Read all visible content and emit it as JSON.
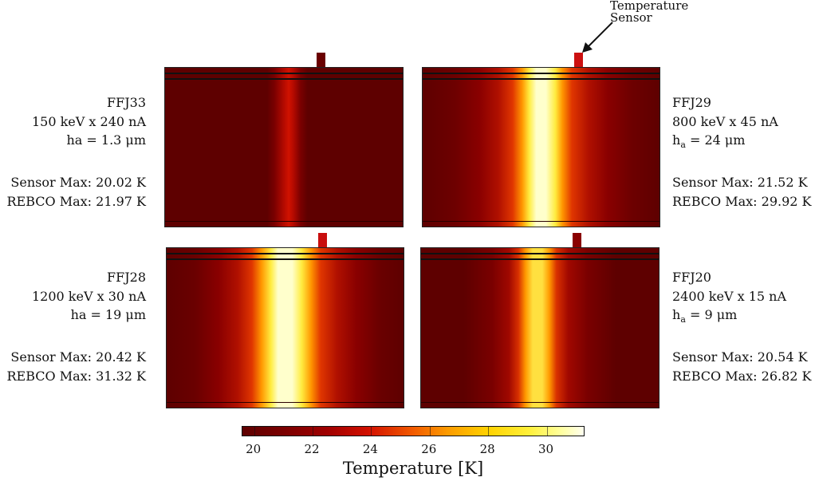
{
  "annotation": {
    "line1": "Temperature",
    "line2": "Sensor"
  },
  "panels": [
    {
      "id": "FFJ33",
      "name": "FFJ33",
      "beam": "150 keV x 240 nA",
      "ha_prefix": "ha",
      "ha_sub": "",
      "ha_value": " = 1.3 μm",
      "sensor_max": "Sensor Max: 20.02 K",
      "rebco_max": "REBCO Max: 21.97 K",
      "gradient": "linear-gradient(to right,#5e0000 0%,#5e0000 43%,#7a0000 46%,#b40a00 50%,#d01200 52%,#b40a00 54%,#7a0000 57%,#5e0000 60%,#5e0000 100%)",
      "sensor_color": "#6a0000"
    },
    {
      "id": "FFJ29",
      "name": "FFJ29",
      "beam": "800 keV x 45 nA",
      "ha_prefix": "h",
      "ha_sub": "a",
      "ha_value": " = 24 μm",
      "sensor_max": "Sensor Max: 21.52 K",
      "rebco_max": "REBCO Max: 29.92 K",
      "gradient": "linear-gradient(to right,#5e0000 0%,#6e0000 14%,#8a0000 24%,#b01000 32%,#e03600 38%,#ff9600 42%,#ffec40 45%,#ffffcc 48%,#ffffcc 52%,#ffec40 56%,#ff9600 59%,#e03600 63%,#b01000 70%,#8a0000 78%,#6e0000 88%,#5e0000 100%)",
      "sensor_color": "#cc1010"
    },
    {
      "id": "FFJ28",
      "name": "FFJ28",
      "beam": "1200 keV x 30 nA",
      "ha_prefix": "ha",
      "ha_sub": "",
      "ha_value": " = 19 μm",
      "sensor_max": "Sensor Max: 20.42 K",
      "rebco_max": "REBCO Max: 31.32 K",
      "gradient": "linear-gradient(to right,#5e0000 0%,#6a0000 12%,#8a0000 22%,#b01000 30%,#e03600 36%,#ff9600 40%,#ffec40 44%,#ffffcc 47%,#ffffcc 53%,#ffec40 57%,#ff9600 61%,#e03600 65%,#b01000 72%,#8a0000 80%,#6a0000 90%,#5e0000 100%)",
      "sensor_color": "#c80e0e"
    },
    {
      "id": "FFJ20",
      "name": "FFJ20",
      "beam": "2400 keV x 15 nA",
      "ha_prefix": "h",
      "ha_sub": "a",
      "ha_value": " = 9 μm",
      "sensor_max": "Sensor Max: 20.54 K",
      "rebco_max": "REBCO Max: 26.82 K",
      "gradient": "linear-gradient(to right,#5e0000 0%,#5e0000 18%,#7a0000 30%,#a00800 37%,#d83000 41%,#ff9a00 44%,#ffe040 47%,#ffe040 51%,#ff9a00 54%,#d83000 57%,#a00800 62%,#7a0000 70%,#5e0000 82%,#5e0000 100%)",
      "sensor_color": "#8a0000"
    }
  ],
  "colorbar": {
    "title": "Temperature [K]",
    "min": 19.6,
    "max": 31.32,
    "ticks": [
      "20",
      "22",
      "24",
      "26",
      "28",
      "30"
    ]
  }
}
